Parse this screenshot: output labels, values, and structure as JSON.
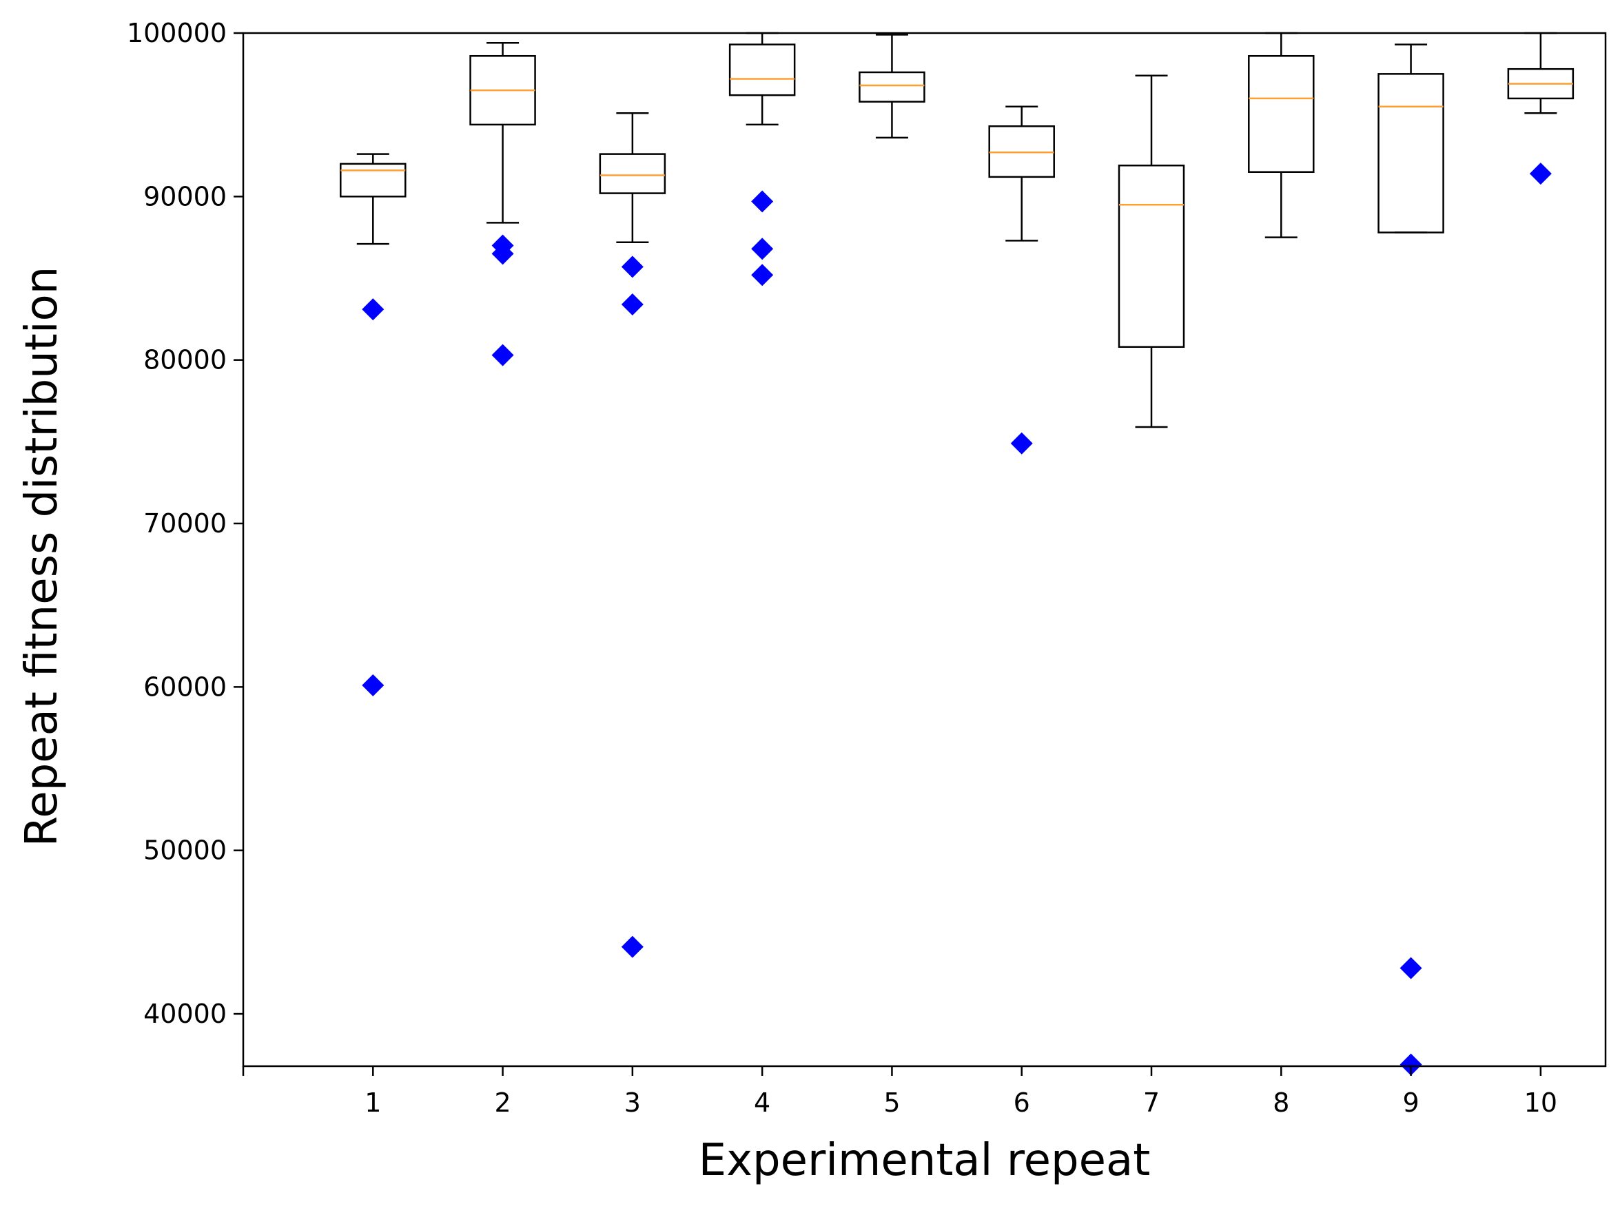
{
  "chart_data": {
    "type": "box",
    "title": "",
    "xlabel": "Experimental repeat",
    "ylabel": "Repeat fitness distribution",
    "categories": [
      "1",
      "2",
      "3",
      "4",
      "5",
      "6",
      "7",
      "8",
      "9",
      "10"
    ],
    "x_range": [
      0,
      10.5
    ],
    "ylim": [
      36800,
      100000
    ],
    "y_ticks": [
      40000,
      50000,
      60000,
      70000,
      80000,
      90000,
      100000
    ],
    "y_tick_labels": [
      "40000",
      "50000",
      "60000",
      "70000",
      "80000",
      "90000",
      "100000"
    ],
    "grid": false,
    "colors": {
      "box": "#000000",
      "median": "#ff9f33",
      "outlier": "#0000ff",
      "axis": "#000000"
    },
    "boxes": [
      {
        "label": "1",
        "whisker_low": 87100,
        "q1": 90000,
        "median": 91600,
        "q3": 92000,
        "whisker_high": 92600,
        "outliers": [
          83100,
          60100
        ]
      },
      {
        "label": "2",
        "whisker_low": 88400,
        "q1": 94400,
        "median": 96500,
        "q3": 98600,
        "whisker_high": 99400,
        "outliers": [
          87000,
          86500,
          80300
        ]
      },
      {
        "label": "3",
        "whisker_low": 87200,
        "q1": 90200,
        "median": 91300,
        "q3": 92600,
        "whisker_high": 95100,
        "outliers": [
          85700,
          83400,
          44100
        ]
      },
      {
        "label": "4",
        "whisker_low": 94400,
        "q1": 96200,
        "median": 97200,
        "q3": 99300,
        "whisker_high": 100000,
        "outliers": [
          89700,
          86800,
          85200
        ]
      },
      {
        "label": "5",
        "whisker_low": 93600,
        "q1": 95800,
        "median": 96800,
        "q3": 97600,
        "whisker_high": 99900,
        "outliers": []
      },
      {
        "label": "6",
        "whisker_low": 87300,
        "q1": 91200,
        "median": 92700,
        "q3": 94300,
        "whisker_high": 95500,
        "outliers": [
          74900
        ]
      },
      {
        "label": "7",
        "whisker_low": 75900,
        "q1": 80800,
        "median": 89500,
        "q3": 91900,
        "whisker_high": 97400,
        "outliers": []
      },
      {
        "label": "8",
        "whisker_low": 87500,
        "q1": 91500,
        "median": 96000,
        "q3": 98600,
        "whisker_high": 100000,
        "outliers": []
      },
      {
        "label": "9",
        "whisker_low": 87800,
        "q1": 87800,
        "median": 95500,
        "q3": 97500,
        "whisker_high": 99300,
        "outliers": [
          42800,
          36900
        ]
      },
      {
        "label": "10",
        "whisker_low": 95100,
        "q1": 96000,
        "median": 96900,
        "q3": 97800,
        "whisker_high": 100000,
        "outliers": [
          91400
        ]
      }
    ]
  }
}
